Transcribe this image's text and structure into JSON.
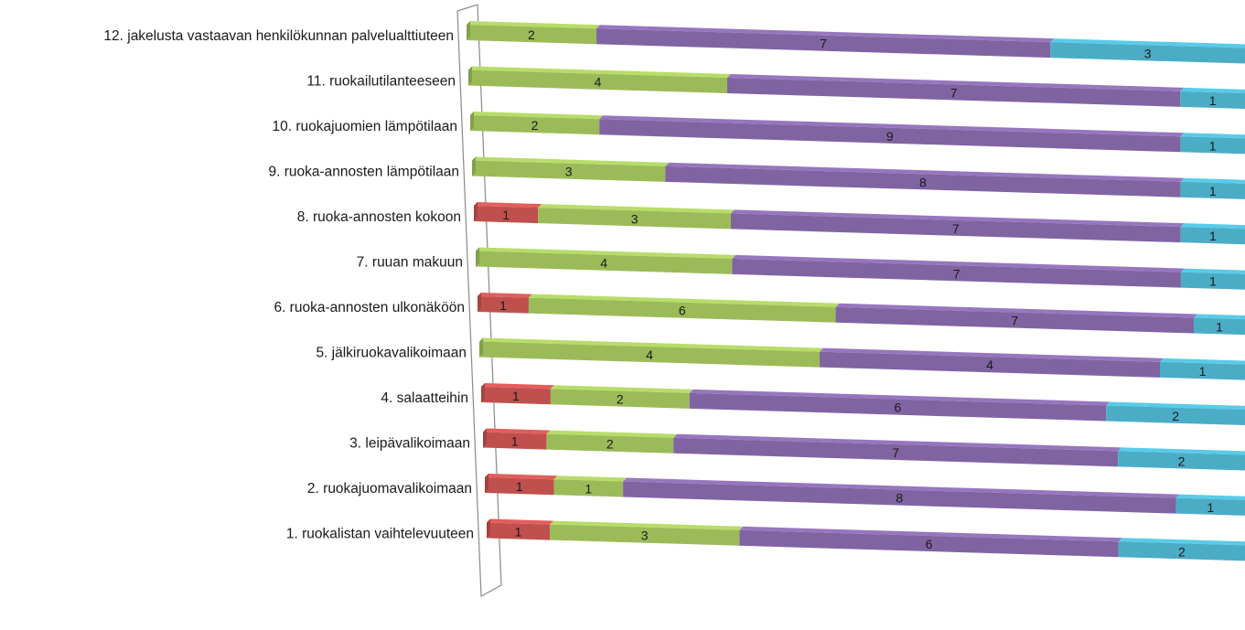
{
  "chart_data": {
    "type": "bar",
    "orientation": "horizontal",
    "stacked": "100%",
    "perspective": "3d",
    "title": "",
    "xlabel": "",
    "ylabel": "",
    "legend": "none",
    "grid": false,
    "categories": [
      "12. jakelusta vastaavan henkilökunnan palvelualttiuteen",
      "11. ruokailutilanteeseen",
      "10. ruokajuomien lämpötilaan",
      "9. ruoka-annosten lämpötilaan",
      "8. ruoka-annosten kokoon",
      "7. ruuan makuun",
      "6. ruoka-annosten ulkonäköön",
      "5. jälkiruokavalikoimaan",
      "4. salaatteihin",
      "3. leipävalikoimaan",
      "2. ruokajuomavalikoimaan",
      "1. ruokalistan vaihtelevuuteen"
    ],
    "series": [
      {
        "color": "#c0504d",
        "values": [
          0,
          0,
          0,
          0,
          1,
          0,
          1,
          0,
          1,
          1,
          1,
          1
        ]
      },
      {
        "color": "#9bbb59",
        "values": [
          2,
          4,
          2,
          3,
          3,
          4,
          6,
          4,
          2,
          2,
          1,
          3
        ]
      },
      {
        "color": "#8064a2",
        "values": [
          7,
          7,
          9,
          8,
          7,
          7,
          7,
          4,
          6,
          7,
          8,
          6
        ]
      },
      {
        "color": "#4bacc6",
        "values": [
          3,
          1,
          1,
          1,
          1,
          1,
          1,
          1,
          2,
          2,
          1,
          2
        ]
      }
    ]
  }
}
